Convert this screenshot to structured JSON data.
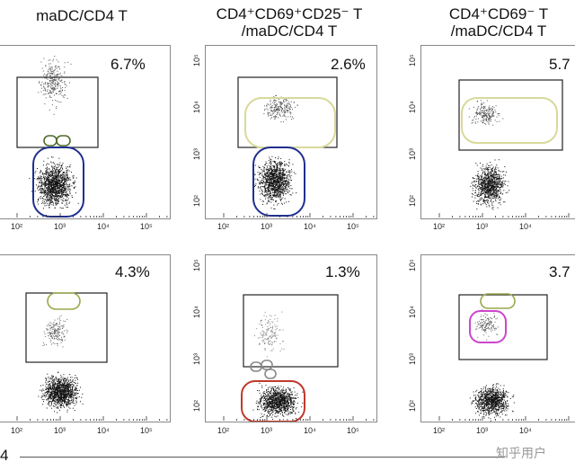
{
  "columns": [
    {
      "title_line1": "maDC/CD4 T",
      "title_line2": ""
    },
    {
      "title_line1": "CD4⁺CD69⁺CD25⁻ T",
      "title_line2": "/maDC/CD4 T"
    },
    {
      "title_line1": "CD4⁺CD69⁻ T",
      "title_line2": "/maDC/CD4 T"
    }
  ],
  "chart_data": [
    {
      "type": "scatter",
      "row": 1,
      "col": 1,
      "gate_percent": "6.7%",
      "x_ticks": [
        "10²",
        "10³",
        "10⁴",
        "10⁵"
      ],
      "y_ticks": [],
      "gates": [
        "upper-rectangle",
        "green-small-ovals",
        "blue-oval"
      ],
      "colors": {
        "gate_box": "#222222",
        "oval": "#1f2f8f",
        "small": "#4f6b2a"
      }
    },
    {
      "type": "scatter",
      "row": 1,
      "col": 2,
      "gate_percent": "2.6%",
      "x_ticks": [
        "10²",
        "10³",
        "10⁴",
        "10⁵"
      ],
      "y_ticks": [
        "10²",
        "10³",
        "10⁴",
        "10⁵"
      ],
      "gates": [
        "upper-rectangle",
        "yellow-oval",
        "blue-oval"
      ],
      "colors": {
        "gate_box": "#222222",
        "upper_oval": "#d8d99a",
        "lower_oval": "#1f2f8f"
      }
    },
    {
      "type": "scatter",
      "row": 1,
      "col": 3,
      "gate_percent": "5.7",
      "x_ticks": [
        "10²",
        "10³",
        "10⁴"
      ],
      "y_ticks": [
        "10²",
        "10³",
        "10⁴",
        "10⁵"
      ],
      "gates": [
        "upper-rectangle",
        "yellow-oval"
      ],
      "colors": {
        "gate_box": "#222222",
        "upper_oval": "#d8d99a"
      }
    },
    {
      "type": "scatter",
      "row": 2,
      "col": 1,
      "gate_percent": "4.3%",
      "x_ticks": [
        "10²",
        "10³",
        "10⁴",
        "10⁵"
      ],
      "y_ticks": [],
      "gates": [
        "upper-rectangle",
        "green-oval"
      ],
      "colors": {
        "gate_box": "#222222",
        "small": "#9aa84a"
      }
    },
    {
      "type": "scatter",
      "row": 2,
      "col": 2,
      "gate_percent": "1.3%",
      "x_ticks": [
        "10²",
        "10³",
        "10⁴",
        "10⁵"
      ],
      "y_ticks": [
        "10²",
        "10³",
        "10⁴",
        "10⁵"
      ],
      "gates": [
        "upper-rectangle",
        "small-ovals",
        "red-oval"
      ],
      "colors": {
        "gate_box": "#222222",
        "lower_oval": "#c0392b",
        "small": "#888888"
      }
    },
    {
      "type": "scatter",
      "row": 2,
      "col": 3,
      "gate_percent": "3.7",
      "x_ticks": [
        "10²",
        "10³",
        "10⁴"
      ],
      "y_ticks": [
        "10²",
        "10³",
        "10⁴",
        "10⁵"
      ],
      "gates": [
        "upper-rectangle",
        "green-oval",
        "magenta-oval"
      ],
      "colors": {
        "gate_box": "#222222",
        "small": "#9aa84a",
        "mid_oval": "#cc44cc"
      }
    }
  ],
  "footer": {
    "label": "4"
  },
  "watermark": "知乎用户"
}
